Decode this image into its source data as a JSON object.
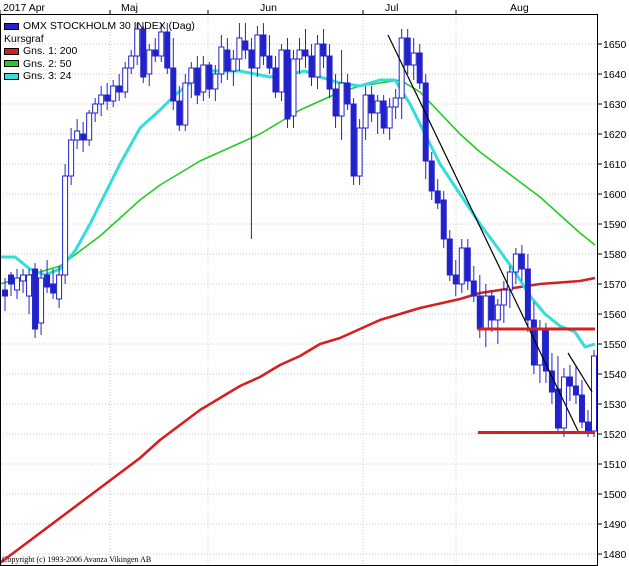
{
  "chart_data": {
    "type": "candlestick",
    "title": "OMX STOCKHOLM 30 INDEX (Dag)",
    "subtitle": "Kursgraf",
    "x_months": [
      "2017 Apr",
      "Maj",
      "Jun",
      "Jul",
      "Aug"
    ],
    "y_ticks": [
      1480,
      1490,
      1500,
      1510,
      1520,
      1530,
      1540,
      1550,
      1560,
      1570,
      1580,
      1590,
      1600,
      1610,
      1620,
      1630,
      1640,
      1650
    ],
    "ylim": [
      1476,
      1660
    ],
    "grid": true,
    "legend_position": "top-left",
    "series": [
      {
        "name": "Gns. 1: 200",
        "color": "#d42020",
        "points": [
          [
            0,
            1477
          ],
          [
            20,
            1482
          ],
          [
            40,
            1487
          ],
          [
            60,
            1492
          ],
          [
            80,
            1497
          ],
          [
            100,
            1502
          ],
          [
            120,
            1507
          ],
          [
            140,
            1512
          ],
          [
            160,
            1518
          ],
          [
            180,
            1523
          ],
          [
            200,
            1528
          ],
          [
            220,
            1532
          ],
          [
            240,
            1536
          ],
          [
            260,
            1539
          ],
          [
            280,
            1543
          ],
          [
            300,
            1546
          ],
          [
            320,
            1550
          ],
          [
            340,
            1552
          ],
          [
            360,
            1555
          ],
          [
            380,
            1558
          ],
          [
            400,
            1560
          ],
          [
            420,
            1562
          ],
          [
            440,
            1563.5
          ],
          [
            460,
            1565
          ],
          [
            480,
            1567
          ],
          [
            500,
            1568
          ],
          [
            520,
            1569
          ],
          [
            540,
            1570
          ],
          [
            560,
            1570.5
          ],
          [
            580,
            1571
          ],
          [
            595,
            1572
          ]
        ]
      },
      {
        "name": "Gns. 2: 50",
        "color": "#22cc22",
        "points": [
          [
            0,
            1570
          ],
          [
            20,
            1572
          ],
          [
            40,
            1574
          ],
          [
            60,
            1576
          ],
          [
            80,
            1581
          ],
          [
            100,
            1586
          ],
          [
            120,
            1592
          ],
          [
            140,
            1598
          ],
          [
            160,
            1603
          ],
          [
            180,
            1607
          ],
          [
            200,
            1611
          ],
          [
            220,
            1614
          ],
          [
            240,
            1617
          ],
          [
            260,
            1620
          ],
          [
            280,
            1624
          ],
          [
            300,
            1628
          ],
          [
            320,
            1631
          ],
          [
            340,
            1634
          ],
          [
            360,
            1636
          ],
          [
            380,
            1637
          ],
          [
            400,
            1638
          ],
          [
            420,
            1634
          ],
          [
            440,
            1627
          ],
          [
            460,
            1620
          ],
          [
            480,
            1614
          ],
          [
            500,
            1609
          ],
          [
            520,
            1604
          ],
          [
            540,
            1599
          ],
          [
            560,
            1593
          ],
          [
            580,
            1587
          ],
          [
            595,
            1583
          ]
        ]
      },
      {
        "name": "Gns. 3: 24",
        "color": "#33dddd",
        "points": [
          [
            0,
            1579
          ],
          [
            15,
            1579
          ],
          [
            30,
            1575
          ],
          [
            45,
            1573
          ],
          [
            60,
            1575
          ],
          [
            75,
            1581
          ],
          [
            90,
            1590
          ],
          [
            105,
            1600
          ],
          [
            120,
            1610
          ],
          [
            140,
            1622
          ],
          [
            160,
            1628
          ],
          [
            175,
            1633
          ],
          [
            190,
            1637
          ],
          [
            210,
            1641
          ],
          [
            240,
            1641
          ],
          [
            270,
            1639
          ],
          [
            290,
            1640
          ],
          [
            305,
            1641
          ],
          [
            320,
            1639
          ],
          [
            340,
            1637
          ],
          [
            360,
            1636
          ],
          [
            380,
            1638
          ],
          [
            395,
            1638
          ],
          [
            410,
            1630
          ],
          [
            425,
            1620
          ],
          [
            440,
            1610
          ],
          [
            460,
            1600
          ],
          [
            480,
            1590
          ],
          [
            500,
            1581
          ],
          [
            515,
            1574
          ],
          [
            530,
            1566
          ],
          [
            545,
            1560
          ],
          [
            560,
            1556
          ],
          [
            575,
            1554
          ],
          [
            585,
            1549
          ],
          [
            595,
            1550
          ]
        ]
      }
    ],
    "trendlines": [
      {
        "color": "#000000",
        "from": [
          388,
          1653
        ],
        "to": [
          578,
          1521
        ]
      },
      {
        "color": "#000000",
        "from": [
          568,
          1547
        ],
        "to": [
          592,
          1534
        ]
      }
    ],
    "hlines": [
      {
        "color": "#d42020",
        "y": 1555,
        "from": 478,
        "to": 595
      },
      {
        "color": "#d42020",
        "y": 1520.5,
        "from": 478,
        "to": 595
      }
    ],
    "candles": [
      [
        1568,
        1572,
        1561,
        1566
      ],
      [
        1573,
        1574,
        1566,
        1570
      ],
      [
        1568,
        1575,
        1565,
        1572
      ],
      [
        1571,
        1575,
        1567,
        1573
      ],
      [
        1566,
        1575,
        1560,
        1573
      ],
      [
        1575,
        1577,
        1552,
        1555
      ],
      [
        1557,
        1575,
        1553,
        1572
      ],
      [
        1573,
        1578,
        1567,
        1569
      ],
      [
        1570,
        1575,
        1565,
        1567
      ],
      [
        1565,
        1576,
        1562,
        1573
      ],
      [
        1573,
        1610,
        1570,
        1606
      ],
      [
        1606,
        1622,
        1603,
        1618
      ],
      [
        1618,
        1625,
        1615,
        1621
      ],
      [
        1620,
        1624,
        1614,
        1618
      ],
      [
        1618,
        1628,
        1616,
        1627
      ],
      [
        1627,
        1632,
        1624,
        1630
      ],
      [
        1630,
        1636,
        1626,
        1633
      ],
      [
        1633,
        1637,
        1628,
        1631
      ],
      [
        1631,
        1638,
        1629,
        1636
      ],
      [
        1636,
        1640,
        1631,
        1634
      ],
      [
        1634,
        1644,
        1632,
        1642
      ],
      [
        1642,
        1648,
        1640,
        1646
      ],
      [
        1646,
        1657,
        1643,
        1655
      ],
      [
        1655,
        1656,
        1637,
        1639
      ],
      [
        1640,
        1650,
        1636,
        1648
      ],
      [
        1648,
        1652,
        1644,
        1646
      ],
      [
        1646,
        1657,
        1644,
        1654
      ],
      [
        1654,
        1657,
        1640,
        1642
      ],
      [
        1642,
        1652,
        1628,
        1631
      ],
      [
        1631,
        1636,
        1621,
        1623
      ],
      [
        1623,
        1640,
        1621,
        1637
      ],
      [
        1637,
        1644,
        1632,
        1642
      ],
      [
        1642,
        1646,
        1630,
        1633
      ],
      [
        1634,
        1646,
        1631,
        1643
      ],
      [
        1643,
        1644,
        1632,
        1635
      ],
      [
        1635,
        1643,
        1631,
        1640
      ],
      [
        1640,
        1653,
        1637,
        1649
      ],
      [
        1648,
        1652,
        1638,
        1641
      ],
      [
        1641,
        1648,
        1636,
        1645
      ],
      [
        1645,
        1657,
        1641,
        1652
      ],
      [
        1651,
        1657,
        1645,
        1648
      ],
      [
        1648,
        1652,
        1585,
        1642
      ],
      [
        1642,
        1656,
        1639,
        1653
      ],
      [
        1653,
        1657,
        1643,
        1646
      ],
      [
        1646,
        1653,
        1640,
        1642
      ],
      [
        1642,
        1646,
        1632,
        1634
      ],
      [
        1634,
        1650,
        1631,
        1648
      ],
      [
        1648,
        1652,
        1622,
        1625
      ],
      [
        1626,
        1648,
        1622,
        1645
      ],
      [
        1645,
        1652,
        1640,
        1648
      ],
      [
        1648,
        1655,
        1642,
        1646
      ],
      [
        1646,
        1650,
        1636,
        1639
      ],
      [
        1639,
        1653,
        1635,
        1650
      ],
      [
        1650,
        1655,
        1642,
        1646
      ],
      [
        1646,
        1650,
        1632,
        1635
      ],
      [
        1635,
        1640,
        1622,
        1626
      ],
      [
        1626,
        1648,
        1618,
        1637
      ],
      [
        1637,
        1640,
        1628,
        1630
      ],
      [
        1630,
        1632,
        1603,
        1606
      ],
      [
        1606,
        1625,
        1603,
        1622
      ],
      [
        1622,
        1636,
        1618,
        1633
      ],
      [
        1633,
        1636,
        1624,
        1627
      ],
      [
        1627,
        1633,
        1620,
        1631
      ],
      [
        1631,
        1633,
        1620,
        1622
      ],
      [
        1622,
        1632,
        1618,
        1629
      ],
      [
        1629,
        1635,
        1625,
        1632
      ],
      [
        1632,
        1655,
        1625,
        1652
      ],
      [
        1652,
        1655,
        1640,
        1643
      ],
      [
        1643,
        1652,
        1638,
        1647
      ],
      [
        1647,
        1650,
        1635,
        1637
      ],
      [
        1637,
        1640,
        1605,
        1611
      ],
      [
        1611,
        1614,
        1598,
        1601
      ],
      [
        1601,
        1605,
        1595,
        1597
      ],
      [
        1598,
        1601,
        1582,
        1585
      ],
      [
        1585,
        1588,
        1571,
        1573
      ],
      [
        1573,
        1578,
        1566,
        1570
      ],
      [
        1570,
        1585,
        1567,
        1582
      ],
      [
        1582,
        1585,
        1568,
        1571
      ],
      [
        1571,
        1576,
        1564,
        1566
      ],
      [
        1566,
        1573,
        1552,
        1555
      ],
      [
        1555,
        1570,
        1549,
        1566
      ],
      [
        1566,
        1568,
        1554,
        1558
      ],
      [
        1558,
        1565,
        1550,
        1563
      ],
      [
        1563,
        1571,
        1557,
        1568
      ],
      [
        1568,
        1576,
        1562,
        1574
      ],
      [
        1574,
        1582,
        1570,
        1580
      ],
      [
        1580,
        1583,
        1571,
        1575
      ],
      [
        1575,
        1580,
        1554,
        1558
      ],
      [
        1558,
        1564,
        1540,
        1543
      ],
      [
        1543,
        1558,
        1537,
        1555
      ],
      [
        1555,
        1557,
        1537,
        1541
      ],
      [
        1541,
        1547,
        1530,
        1534
      ],
      [
        1535,
        1546,
        1520,
        1522
      ],
      [
        1522,
        1542,
        1519,
        1539
      ],
      [
        1539,
        1543,
        1531,
        1536
      ],
      [
        1536,
        1543,
        1530,
        1533
      ],
      [
        1533,
        1538,
        1522,
        1524
      ],
      [
        1524,
        1528,
        1519,
        1521
      ],
      [
        1521,
        1548,
        1519,
        1546
      ]
    ]
  },
  "legend": {
    "title": "OMX STOCKHOLM 30 INDEX (Dag)",
    "subtitle": "Kursgraf",
    "items": [
      "Gns. 1: 200",
      "Gns. 2: 50",
      "Gns. 3: 24"
    ],
    "colors": [
      "#d42020",
      "#22cc22",
      "#33dddd"
    ]
  },
  "copyright": "Copyright (c) 1993-2006 Avanza Vikingen AB",
  "colors": {
    "candle": "#2222cc",
    "grid": "#c8c8c8",
    "frame": "#000000"
  }
}
